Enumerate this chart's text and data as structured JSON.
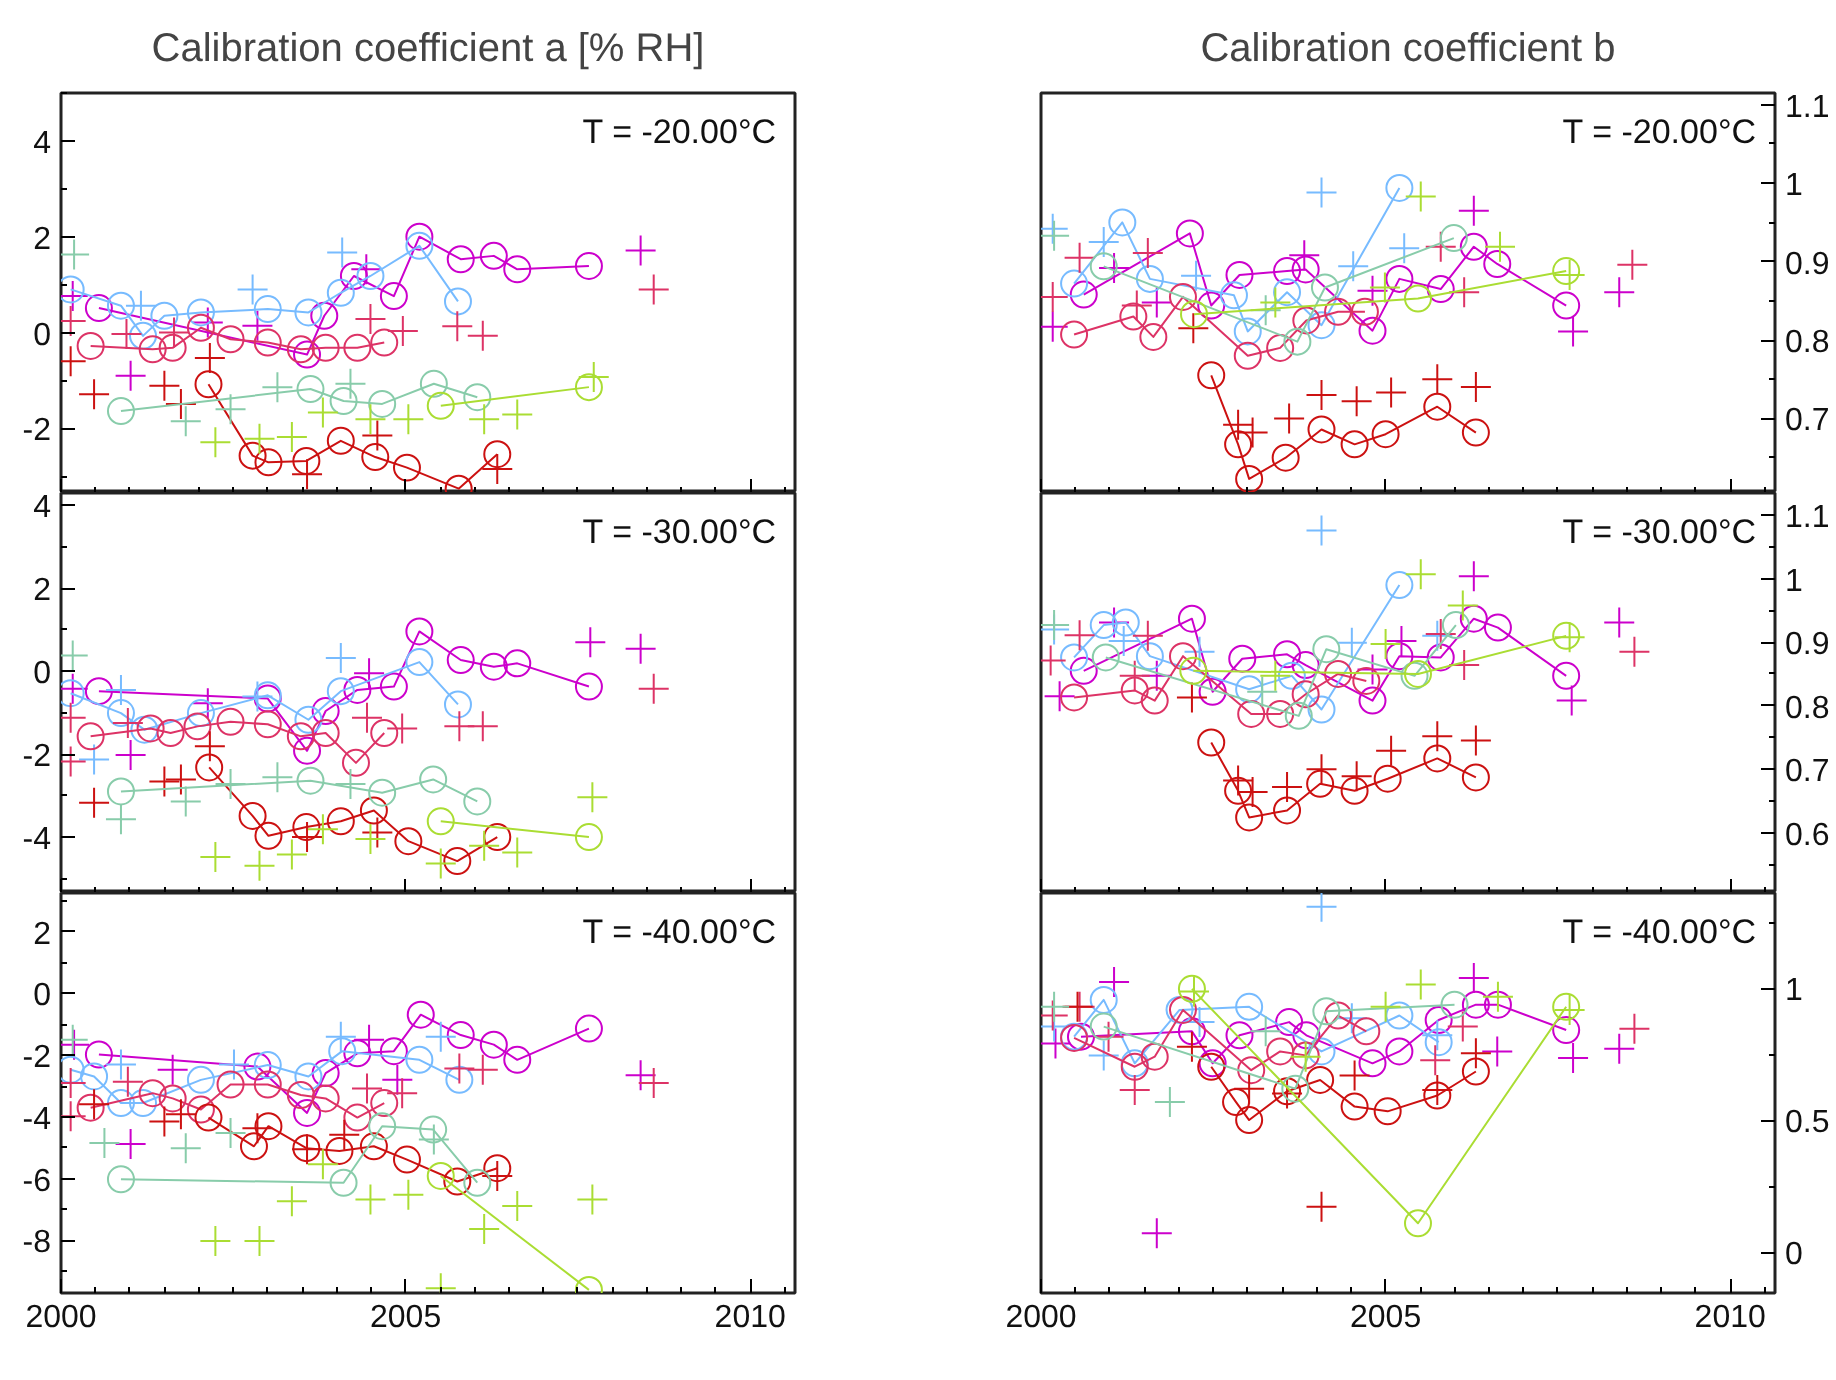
{
  "chart_data": [
    {
      "type": "scatter",
      "title": "Calibration coefficient a [% RH]",
      "annotations": [
        "T = -20.00°C"
      ],
      "xlim": [
        2000,
        2010.65
      ],
      "ylim": [
        -3.35,
        5
      ],
      "xticks": [
        2000,
        2005,
        2010
      ],
      "yticks": [
        -2,
        0,
        2,
        4
      ],
      "tick_labels": "y",
      "series": [
        {
          "type": "line",
          "marker": "circle",
          "color": "#cc00cc",
          "x": [
            2000.55,
            2003.57,
            2003.82,
            2004.25,
            2004.83,
            2005.2,
            2005.8,
            2006.28,
            2006.62,
            2007.66
          ],
          "values": [
            0.51,
            -0.46,
            0.35,
            1.18,
            0.76,
            2.0,
            1.53,
            1.6,
            1.32,
            1.39
          ]
        },
        {
          "type": "scatter",
          "marker": "cross",
          "color": "#cc00cc",
          "x": [
            2000.17,
            2001.01,
            2002.13,
            2002.85,
            2004.43,
            2008.41
          ],
          "values": [
            0.76,
            -0.9,
            0.21,
            0.14,
            1.32,
            1.71
          ]
        },
        {
          "type": "line",
          "marker": "circle",
          "color": "#77bbff",
          "x": [
            2000.14,
            2000.87,
            2001.19,
            2001.5,
            2002.03,
            2003.0,
            2003.59,
            2004.06,
            2004.49,
            2005.2,
            2005.76
          ],
          "values": [
            0.9,
            0.56,
            -0.07,
            0.35,
            0.42,
            0.49,
            0.42,
            0.83,
            1.18,
            1.81,
            0.65
          ]
        },
        {
          "type": "scatter",
          "marker": "cross",
          "color": "#77bbff",
          "x": [
            2001.16,
            2002.78,
            2004.08
          ],
          "values": [
            0.56,
            0.9,
            1.67
          ]
        },
        {
          "type": "line",
          "marker": "circle",
          "color": "#dd3366",
          "x": [
            2000.43,
            2001.33,
            2001.62,
            2002.03,
            2002.46,
            2003.0,
            2003.48,
            2003.84,
            2004.3,
            2004.69
          ],
          "values": [
            -0.28,
            -0.35,
            -0.32,
            0.1,
            -0.14,
            -0.21,
            -0.35,
            -0.32,
            -0.32,
            -0.21
          ]
        },
        {
          "type": "scatter",
          "marker": "cross",
          "color": "#dd3366",
          "x": [
            2000.14,
            2000.95,
            2001.64,
            2004.49,
            2004.96,
            2005.75,
            2006.12,
            2008.6
          ],
          "values": [
            0.24,
            -0.03,
            0,
            0.28,
            0.03,
            0.13,
            -0.07,
            0.9
          ]
        },
        {
          "type": "line",
          "marker": "circle",
          "color": "#cc1111",
          "x": [
            2002.14,
            2002.78,
            2003.01,
            2003.56,
            2004.06,
            2004.56,
            2005.02,
            2005.77,
            2006.33
          ],
          "values": [
            -1.08,
            -2.57,
            -2.71,
            -2.68,
            -2.26,
            -2.6,
            -2.82,
            -3.26,
            -2.54
          ]
        },
        {
          "type": "scatter",
          "marker": "cross",
          "color": "#cc1111",
          "x": [
            2000.14,
            2000.48,
            2001.5,
            2001.74,
            2002.16,
            2003.57,
            2004.59,
            2006.33
          ],
          "values": [
            -0.6,
            -1.29,
            -1.11,
            -1.49,
            -0.53,
            -2.96,
            -2.15,
            -2.85
          ]
        },
        {
          "type": "line",
          "marker": "circle",
          "color": "#88ccaa",
          "x": [
            2000.87,
            2003.62,
            2004.1,
            2004.66,
            2005.41,
            2006.04
          ],
          "values": [
            -1.64,
            -1.18,
            -1.43,
            -1.49,
            -1.07,
            -1.35
          ]
        },
        {
          "type": "scatter",
          "marker": "cross",
          "color": "#88ccaa",
          "x": [
            2000.19,
            2001.81,
            2002.46,
            2003.14,
            2004.2
          ],
          "values": [
            1.63,
            -1.85,
            -1.6,
            -1.14,
            -1.07
          ]
        },
        {
          "type": "line",
          "marker": "circle",
          "color": "#aadd33",
          "x": [
            2005.51,
            2007.66
          ],
          "values": [
            -1.53,
            -1.14
          ]
        },
        {
          "type": "scatter",
          "marker": "cross",
          "color": "#aadd33",
          "x": [
            2002.24,
            2002.88,
            2003.35,
            2003.8,
            2004.49,
            2005.04,
            2006.14,
            2006.62,
            2007.73
          ],
          "values": [
            -2.29,
            -2.22,
            -2.18,
            -1.67,
            -1.81,
            -1.81,
            -1.81,
            -1.71,
            -0.93
          ]
        }
      ]
    },
    {
      "type": "scatter",
      "title": "Calibration coefficient b",
      "annotations": [
        "T = -20.00°C"
      ],
      "xlim": [
        2000,
        2010.65
      ],
      "ylim": [
        0.605,
        1.115
      ],
      "xticks": [
        2000,
        2005,
        2010
      ],
      "yticks": [
        0.7,
        0.8,
        0.9,
        1,
        1.1
      ],
      "tick_labels": "y",
      "series": [
        {
          "type": "line",
          "marker": "circle",
          "color": "#cc00cc",
          "x": [
            2000.62,
            2002.16,
            2002.47,
            2002.88,
            2003.57,
            2003.84,
            2004.81,
            2005.2,
            2005.8,
            2006.28,
            2006.62,
            2007.62
          ],
          "values": [
            0.858,
            0.936,
            0.844,
            0.883,
            0.888,
            0.89,
            0.812,
            0.878,
            0.865,
            0.919,
            0.897,
            0.844
          ]
        },
        {
          "type": "scatter",
          "marker": "cross",
          "color": "#cc00cc",
          "x": [
            2000.17,
            2001.06,
            2001.68,
            2003.82,
            2004.81,
            2006.28,
            2007.72,
            2008.39
          ],
          "values": [
            0.817,
            0.892,
            0.848,
            0.908,
            0.863,
            0.965,
            0.811,
            0.861
          ]
        },
        {
          "type": "line",
          "marker": "circle",
          "color": "#77bbff",
          "x": [
            2000.48,
            2001.18,
            2001.58,
            2002.8,
            2003.0,
            2003.57,
            2004.07,
            2005.2
          ],
          "values": [
            0.872,
            0.95,
            0.878,
            0.857,
            0.811,
            0.861,
            0.819,
            0.994
          ]
        },
        {
          "type": "scatter",
          "marker": "cross",
          "color": "#77bbff",
          "x": [
            2000.17,
            2000.91,
            2002.25,
            2004.07,
            2004.53,
            2005.27
          ],
          "values": [
            0.942,
            0.925,
            0.882,
            0.988,
            0.894,
            0.917
          ]
        },
        {
          "type": "line",
          "marker": "circle",
          "color": "#dd3366",
          "x": [
            2000.48,
            2001.34,
            2001.63,
            2002.06,
            2003.0,
            2003.47,
            2003.85,
            2004.31,
            2004.7
          ],
          "values": [
            0.807,
            0.83,
            0.804,
            0.855,
            0.78,
            0.79,
            0.825,
            0.836,
            0.836
          ]
        },
        {
          "type": "scatter",
          "marker": "cross",
          "color": "#dd3366",
          "x": [
            2000.17,
            2000.56,
            2001.39,
            2001.55,
            2005.8,
            2006.14,
            2008.58
          ],
          "values": [
            0.855,
            0.905,
            0.844,
            0.911,
            0.919,
            0.861,
            0.896
          ]
        },
        {
          "type": "line",
          "marker": "circle",
          "color": "#cc1111",
          "x": [
            2002.47,
            2002.86,
            2003.02,
            2003.55,
            2004.07,
            2004.55,
            2005.0,
            2005.75,
            2006.31
          ],
          "values": [
            0.755,
            0.667,
            0.623,
            0.65,
            0.686,
            0.667,
            0.68,
            0.715,
            0.682
          ]
        },
        {
          "type": "scatter",
          "marker": "cross",
          "color": "#cc1111",
          "x": [
            2002.21,
            2002.86,
            2003.07,
            2003.6,
            2004.07,
            2004.58,
            2005.08,
            2005.75,
            2006.31
          ],
          "values": [
            0.815,
            0.692,
            0.682,
            0.7,
            0.73,
            0.722,
            0.733,
            0.75,
            0.74
          ]
        },
        {
          "type": "line",
          "marker": "circle",
          "color": "#88ccaa",
          "x": [
            2000.91,
            2003.72,
            2004.12,
            2005.99
          ],
          "values": [
            0.894,
            0.798,
            0.867,
            0.93
          ]
        },
        {
          "type": "scatter",
          "marker": "cross",
          "color": "#88ccaa",
          "x": [
            2000.19,
            2003.26
          ],
          "values": [
            0.933,
            0.838
          ]
        },
        {
          "type": "line",
          "marker": "circle",
          "color": "#aadd33",
          "x": [
            2002.22,
            2005.47,
            2007.62
          ],
          "values": [
            0.833,
            0.853,
            0.888
          ]
        },
        {
          "type": "scatter",
          "marker": "cross",
          "color": "#aadd33",
          "x": [
            2003.4,
            2004.99,
            2005.51,
            2006.66,
            2007.67
          ],
          "values": [
            0.848,
            0.867,
            0.983,
            0.919,
            0.883
          ]
        }
      ]
    },
    {
      "type": "scatter",
      "annotations": [
        "T = -30.00°C"
      ],
      "xlim": [
        2000,
        2010.65
      ],
      "ylim": [
        -5.35,
        4.3
      ],
      "xticks": [
        2000,
        2005,
        2010
      ],
      "yticks": [
        -4,
        -2,
        0,
        2,
        4
      ],
      "tick_labels": "y",
      "series": [
        {
          "type": "line",
          "marker": "circle",
          "color": "#cc00cc",
          "x": [
            2000.55,
            2003.0,
            2003.57,
            2003.84,
            2004.3,
            2004.83,
            2005.2,
            2005.8,
            2006.28,
            2006.62,
            2007.66
          ],
          "values": [
            -0.48,
            -0.66,
            -1.92,
            -0.96,
            -0.45,
            -0.37,
            0.96,
            0.27,
            0.11,
            0.19,
            -0.37
          ]
        },
        {
          "type": "scatter",
          "marker": "cross",
          "color": "#cc00cc",
          "x": [
            2000.17,
            2001.01,
            2002.13,
            2004.47,
            2007.68,
            2008.41
          ],
          "values": [
            -0.42,
            -2.02,
            -0.77,
            -0.05,
            0.7,
            0.54
          ]
        },
        {
          "type": "line",
          "marker": "circle",
          "color": "#77bbff",
          "x": [
            2000.14,
            2000.87,
            2001.21,
            2002.03,
            2003.0,
            2003.59,
            2004.06,
            2005.2,
            2005.76
          ],
          "values": [
            -0.53,
            -1.01,
            -1.41,
            -1.01,
            -0.58,
            -1.17,
            -0.48,
            0.22,
            -0.8
          ]
        },
        {
          "type": "scatter",
          "marker": "cross",
          "color": "#77bbff",
          "x": [
            2000.48,
            2000.87,
            2002.85,
            2004.06
          ],
          "values": [
            -2.13,
            -0.45,
            -0.61,
            0.32
          ]
        },
        {
          "type": "line",
          "marker": "circle",
          "color": "#dd3366",
          "x": [
            2000.43,
            2001.3,
            2001.59,
            2001.98,
            2002.46,
            2003.0,
            2003.48,
            2003.84,
            2004.28,
            2004.69
          ],
          "values": [
            -1.57,
            -1.38,
            -1.49,
            -1.33,
            -1.22,
            -1.28,
            -1.57,
            -1.49,
            -2.21,
            -1.49
          ]
        },
        {
          "type": "scatter",
          "marker": "cross",
          "color": "#dd3366",
          "x": [
            2000.14,
            2000.14,
            2000.97,
            2004.44,
            2004.95,
            2005.78,
            2006.12,
            2008.6
          ],
          "values": [
            -1.12,
            -2.18,
            -1.25,
            -1.12,
            -1.38,
            -1.33,
            -1.33,
            -0.42
          ]
        },
        {
          "type": "line",
          "marker": "circle",
          "color": "#cc1111",
          "x": [
            2002.15,
            2002.78,
            2003.01,
            2003.56,
            2004.06,
            2004.54,
            2005.04,
            2005.75,
            2006.33
          ],
          "values": [
            -2.32,
            -3.49,
            -3.97,
            -3.76,
            -3.62,
            -3.36,
            -4.1,
            -4.58,
            -4.0
          ]
        },
        {
          "type": "scatter",
          "marker": "cross",
          "color": "#cc1111",
          "x": [
            2000.48,
            2001.5,
            2001.74,
            2002.16,
            2003.57,
            2004.59
          ],
          "values": [
            -3.17,
            -2.66,
            -2.61,
            -1.81,
            -4.0,
            -3.89
          ]
        },
        {
          "type": "line",
          "marker": "circle",
          "color": "#88ccaa",
          "x": [
            2000.87,
            2003.62,
            2004.66,
            2005.4,
            2006.04
          ],
          "values": [
            -2.9,
            -2.64,
            -2.93,
            -2.61,
            -3.14
          ]
        },
        {
          "type": "scatter",
          "marker": "cross",
          "color": "#88ccaa",
          "x": [
            2000.17,
            2000.87,
            2001.81,
            2002.46,
            2003.14,
            2004.2
          ],
          "values": [
            0.38,
            -3.57,
            -3.14,
            -2.72,
            -2.56,
            -2.72
          ]
        },
        {
          "type": "line",
          "marker": "circle",
          "color": "#aadd33",
          "x": [
            2005.51,
            2007.66
          ],
          "values": [
            -3.62,
            -4.0
          ]
        },
        {
          "type": "scatter",
          "marker": "cross",
          "color": "#aadd33",
          "x": [
            2002.24,
            2002.88,
            2003.35,
            2003.8,
            2004.49,
            2005.51,
            2006.14,
            2006.62,
            2007.71
          ],
          "values": [
            -4.48,
            -4.69,
            -4.42,
            -3.81,
            -4.05,
            -4.64,
            -4.21,
            -4.37,
            -3.04
          ]
        }
      ]
    },
    {
      "type": "scatter",
      "annotations": [
        "T = -30.00°C"
      ],
      "xlim": [
        2000,
        2010.65
      ],
      "ylim": [
        0.505,
        1.135
      ],
      "xticks": [
        2000,
        2005,
        2010
      ],
      "yticks": [
        0.6,
        0.7,
        0.8,
        0.9,
        1,
        1.1
      ],
      "tick_labels": "y",
      "series": [
        {
          "type": "line",
          "marker": "circle",
          "color": "#cc00cc",
          "x": [
            2000.62,
            2002.19,
            2002.49,
            2002.92,
            2003.57,
            2003.84,
            2004.81,
            2005.2,
            2005.8,
            2006.28,
            2006.63,
            2007.62
          ],
          "values": [
            0.855,
            0.937,
            0.822,
            0.874,
            0.881,
            0.864,
            0.808,
            0.878,
            0.876,
            0.937,
            0.923,
            0.847
          ]
        },
        {
          "type": "scatter",
          "marker": "cross",
          "color": "#cc00cc",
          "x": [
            2000.27,
            2001.06,
            2001.68,
            2004.81,
            2005.23,
            2006.28,
            2007.7,
            2008.39
          ],
          "values": [
            0.815,
            0.931,
            0.847,
            0.857,
            0.902,
            1.004,
            0.808,
            0.931
          ]
        },
        {
          "type": "line",
          "marker": "circle",
          "color": "#77bbff",
          "x": [
            2000.48,
            2000.91,
            2001.23,
            2001.58,
            2003.02,
            2003.64,
            2004.07,
            2005.2
          ],
          "values": [
            0.876,
            0.927,
            0.931,
            0.878,
            0.826,
            0.847,
            0.794,
            0.99
          ]
        },
        {
          "type": "scatter",
          "marker": "cross",
          "color": "#77bbff",
          "x": [
            2000.19,
            2001.2,
            2002.3,
            2004.07,
            2004.51,
            2005.75
          ],
          "values": [
            0.92,
            0.902,
            0.885,
            1.076,
            0.899,
            0.91
          ]
        },
        {
          "type": "line",
          "marker": "circle",
          "color": "#dd3366",
          "x": [
            2000.48,
            2001.36,
            2001.65,
            2002.06,
            2003.05,
            2003.47,
            2003.84,
            2004.31,
            2004.72
          ],
          "values": [
            0.813,
            0.824,
            0.808,
            0.878,
            0.787,
            0.787,
            0.818,
            0.85,
            0.839
          ]
        },
        {
          "type": "scatter",
          "marker": "cross",
          "color": "#dd3366",
          "x": [
            2000.14,
            2000.56,
            2001.36,
            2001.55,
            2005.8,
            2006.14,
            2008.61
          ],
          "values": [
            0.871,
            0.911,
            0.847,
            0.91,
            0.913,
            0.864,
            0.885
          ]
        },
        {
          "type": "line",
          "marker": "circle",
          "color": "#cc1111",
          "x": [
            2002.47,
            2002.86,
            2003.02,
            2003.57,
            2004.05,
            2004.55,
            2005.03,
            2005.75,
            2006.31
          ],
          "values": [
            0.742,
            0.666,
            0.624,
            0.635,
            0.677,
            0.666,
            0.685,
            0.717,
            0.687
          ]
        },
        {
          "type": "scatter",
          "marker": "cross",
          "color": "#cc1111",
          "x": [
            2002.19,
            2002.86,
            2003.07,
            2003.57,
            2004.07,
            2004.58,
            2005.08,
            2005.75,
            2006.31
          ],
          "values": [
            0.813,
            0.682,
            0.664,
            0.672,
            0.7,
            0.689,
            0.729,
            0.752,
            0.745
          ]
        },
        {
          "type": "line",
          "marker": "circle",
          "color": "#88ccaa",
          "x": [
            2000.94,
            2003.74,
            2004.14,
            2005.42,
            2006.02
          ],
          "values": [
            0.876,
            0.784,
            0.889,
            0.847,
            0.927
          ]
        },
        {
          "type": "scatter",
          "marker": "cross",
          "color": "#88ccaa",
          "x": [
            2000.19,
            2003.21
          ],
          "values": [
            0.927,
            0.822
          ]
        },
        {
          "type": "line",
          "marker": "circle",
          "color": "#aadd33",
          "x": [
            2002.21,
            2005.47,
            2007.62
          ],
          "values": [
            0.855,
            0.85,
            0.91
          ]
        },
        {
          "type": "scatter",
          "marker": "cross",
          "color": "#aadd33",
          "x": [
            2003.4,
            2005.0,
            2005.51,
            2006.12,
            2007.67
          ],
          "values": [
            0.847,
            0.897,
            1.007,
            0.958,
            0.908
          ]
        }
      ]
    },
    {
      "type": "scatter",
      "annotations": [
        "T = -40.00°C"
      ],
      "xlim": [
        2000,
        2010.65
      ],
      "ylim": [
        -9.7,
        3.25
      ],
      "xticks": [
        2000,
        2005,
        2010
      ],
      "yticks": [
        -8,
        -6,
        -4,
        -2,
        0,
        2
      ],
      "series": [
        {
          "type": "line",
          "marker": "circle",
          "color": "#cc00cc",
          "x": [
            2000.55,
            2002.85,
            2003.57,
            2003.84,
            2004.3,
            2004.83,
            2005.22,
            2005.8,
            2006.28,
            2006.62,
            2007.66
          ],
          "values": [
            -1.98,
            -2.37,
            -3.87,
            -2.58,
            -1.94,
            -1.87,
            -0.69,
            -1.35,
            -1.66,
            -2.15,
            -1.14
          ]
        },
        {
          "type": "scatter",
          "marker": "cross",
          "color": "#cc00cc",
          "x": [
            2000.19,
            2001.01,
            2001.62,
            2004.47,
            2004.88,
            2008.41
          ],
          "values": [
            -1.66,
            -4.88,
            -2.47,
            -1.5,
            -2.8,
            -2.65
          ]
        },
        {
          "type": "line",
          "marker": "circle",
          "color": "#77bbff",
          "x": [
            2000.14,
            2000.48,
            2000.87,
            2001.19,
            2002.03,
            2003.0,
            2003.59,
            2004.08,
            2005.2,
            2005.78
          ],
          "values": [
            -2.47,
            -2.69,
            -3.55,
            -3.55,
            -2.8,
            -2.32,
            -2.69,
            -1.87,
            -2.15,
            -2.8
          ]
        },
        {
          "type": "scatter",
          "marker": "cross",
          "color": "#77bbff",
          "x": [
            2000.87,
            2002.51,
            2004.06,
            2005.51
          ],
          "values": [
            -2.3,
            -2.3,
            -1.4,
            -1.4
          ]
        },
        {
          "type": "line",
          "marker": "circle",
          "color": "#dd3366",
          "x": [
            2000.43,
            2001.33,
            2001.62,
            2002.03,
            2002.46,
            2003.0,
            2003.48,
            2003.84,
            2004.3,
            2004.69
          ],
          "values": [
            -3.7,
            -3.23,
            -3.4,
            -3.76,
            -2.95,
            -2.95,
            -3.29,
            -3.4,
            -4.02,
            -3.55
          ]
        },
        {
          "type": "scatter",
          "marker": "cross",
          "color": "#dd3366",
          "x": [
            2000.14,
            2000.14,
            2000.97,
            2004.44,
            2004.95,
            2005.78,
            2006.12,
            2008.6
          ],
          "values": [
            -2.9,
            -3.98,
            -2.86,
            -3.08,
            -3.23,
            -2.43,
            -2.47,
            -2.9
          ]
        },
        {
          "type": "line",
          "marker": "circle",
          "color": "#cc1111",
          "x": [
            2002.14,
            2002.8,
            2003.01,
            2003.56,
            2004.04,
            2004.54,
            2005.02,
            2005.75,
            2006.33
          ],
          "values": [
            -4.02,
            -4.95,
            -4.3,
            -5.01,
            -5.1,
            -4.95,
            -5.38,
            -6.09,
            -5.66
          ]
        },
        {
          "type": "scatter",
          "marker": "cross",
          "color": "#cc1111",
          "x": [
            2000.48,
            2001.5,
            2001.74,
            2002.85,
            2003.57,
            2004.11,
            2006.33
          ],
          "values": [
            -3.59,
            -4.15,
            -3.91,
            -4.37,
            -5.05,
            -4.58,
            -5.91
          ]
        },
        {
          "type": "line",
          "marker": "circle",
          "color": "#88ccaa",
          "x": [
            2000.87,
            2004.1,
            2004.66,
            2005.4,
            2006.04
          ],
          "values": [
            -6.02,
            -6.13,
            -4.3,
            -4.41,
            -6.13
          ]
        },
        {
          "type": "scatter",
          "marker": "cross",
          "color": "#88ccaa",
          "x": [
            2000.17,
            2000.63,
            2001.81,
            2002.46,
            2005.41
          ],
          "values": [
            -1.5,
            -4.84,
            -5.01,
            -4.52,
            -4.73
          ]
        },
        {
          "type": "line",
          "marker": "circle",
          "color": "#aadd33",
          "x": [
            2005.51,
            2007.66
          ],
          "values": [
            -5.91,
            -9.6
          ]
        },
        {
          "type": "scatter",
          "marker": "cross",
          "color": "#aadd33",
          "x": [
            2002.24,
            2002.88,
            2003.35,
            2003.8,
            2004.49,
            2005.04,
            2005.51,
            2006.14,
            2006.62,
            2007.71
          ],
          "values": [
            -8.02,
            -8.02,
            -6.73,
            -5.53,
            -6.67,
            -6.52,
            -9.55,
            -7.63,
            -6.88,
            -6.67
          ]
        }
      ]
    },
    {
      "type": "scatter",
      "annotations": [
        "T = -40.00°C"
      ],
      "xlim": [
        2000,
        2010.65
      ],
      "ylim": [
        -0.155,
        1.36
      ],
      "xticks": [
        2000,
        2005,
        2010
      ],
      "yticks": [
        0,
        0.5,
        1
      ],
      "series": [
        {
          "type": "line",
          "marker": "circle",
          "color": "#cc00cc",
          "x": [
            2000.58,
            2002.19,
            2002.49,
            2002.88,
            2003.6,
            2003.85,
            2004.81,
            2005.2,
            2005.77,
            2006.31,
            2006.63,
            2007.62
          ],
          "values": [
            0.816,
            0.836,
            0.715,
            0.821,
            0.871,
            0.821,
            0.715,
            0.76,
            0.879,
            0.937,
            0.937,
            0.841
          ]
        },
        {
          "type": "scatter",
          "marker": "cross",
          "color": "#cc00cc",
          "x": [
            2000.21,
            2001.06,
            2001.68,
            2006.28,
            2006.62,
            2007.72,
            2008.39
          ],
          "values": [
            0.79,
            1.023,
            0.071,
            1.038,
            0.76,
            0.735,
            0.77
          ]
        },
        {
          "type": "line",
          "marker": "circle",
          "color": "#77bbff",
          "x": [
            2000.48,
            2000.91,
            2001.36,
            2002.01,
            2003.02,
            2004.07,
            2005.2,
            2005.77
          ],
          "values": [
            0.816,
            0.955,
            0.715,
            0.917,
            0.929,
            0.76,
            0.896,
            0.795
          ]
        },
        {
          "type": "scatter",
          "marker": "cross",
          "color": "#77bbff",
          "x": [
            2000.19,
            2000.91,
            2002.3,
            2004.07,
            2004.51,
            2005.75
          ],
          "values": [
            0.854,
            0.745,
            0.871,
            1.308,
            0.886,
            0.821
          ]
        },
        {
          "type": "line",
          "marker": "circle",
          "color": "#dd3366",
          "x": [
            2000.48,
            2001.36,
            2001.65,
            2002.06,
            2003.05,
            2003.47,
            2003.84,
            2004.31,
            2004.72
          ],
          "values": [
            0.811,
            0.702,
            0.74,
            0.917,
            0.689,
            0.76,
            0.745,
            0.896,
            0.836
          ]
        },
        {
          "type": "scatter",
          "marker": "cross",
          "color": "#dd3366",
          "x": [
            2000.17,
            2000.56,
            2000.98,
            2001.36,
            2005.72,
            2006.12,
            2008.61
          ],
          "values": [
            0.896,
            0.929,
            0.816,
            0.614,
            0.727,
            0.854,
            0.846
          ]
        },
        {
          "type": "line",
          "marker": "circle",
          "color": "#cc1111",
          "x": [
            2002.47,
            2002.83,
            2003.02,
            2003.57,
            2004.05,
            2004.55,
            2005.03,
            2005.75,
            2006.31
          ],
          "values": [
            0.702,
            0.568,
            0.5,
            0.609,
            0.652,
            0.551,
            0.533,
            0.593,
            0.684
          ]
        },
        {
          "type": "scatter",
          "marker": "cross",
          "color": "#cc1111",
          "x": [
            2000.53,
            2002.19,
            2003.02,
            2003.57,
            2004.07,
            2004.55,
            2005.75,
            2006.31
          ],
          "values": [
            0.929,
            0.778,
            0.619,
            0.601,
            0.172,
            0.669,
            0.614,
            0.753
          ]
        },
        {
          "type": "line",
          "marker": "circle",
          "color": "#88ccaa",
          "x": [
            2000.91,
            2003.69,
            2004.14,
            2006.0
          ],
          "values": [
            0.854,
            0.619,
            0.912,
            0.937
          ]
        },
        {
          "type": "scatter",
          "marker": "cross",
          "color": "#88ccaa",
          "x": [
            2000.19,
            2001.87,
            2003.26
          ],
          "values": [
            0.929,
            0.568,
            0.836
          ]
        },
        {
          "type": "line",
          "marker": "circle",
          "color": "#aadd33",
          "x": [
            2002.19,
            2005.47,
            2007.62
          ],
          "values": [
            0.997,
            0.109,
            0.929
          ]
        },
        {
          "type": "scatter",
          "marker": "cross",
          "color": "#aadd33",
          "x": [
            2002.22,
            2003.84,
            2005.0,
            2005.51,
            2006.63,
            2007.67
          ],
          "values": [
            0.987,
            0.74,
            0.929,
            1.013,
            0.967,
            0.917
          ]
        }
      ]
    }
  ]
}
